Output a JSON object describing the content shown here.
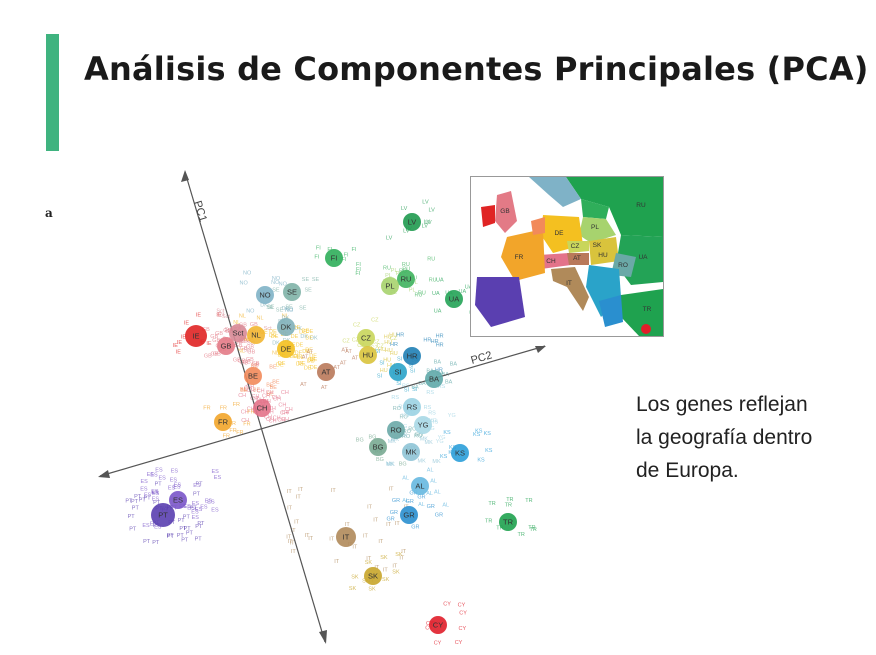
{
  "slide": {
    "title": "Análisis de Componentes Principales (PCA)",
    "accent_color": "#3fb37f",
    "panel_label": "a",
    "caption_lines": [
      "Los genes reflejan",
      "la geografía dentro",
      "de Europa."
    ]
  },
  "figure": {
    "axes": {
      "pc1_label": "PC1",
      "pc2_label": "PC2"
    },
    "nodes": [
      {
        "code": "LV",
        "color": "#1f9a4f"
      },
      {
        "code": "FI",
        "color": "#2fae5a"
      },
      {
        "code": "RU",
        "color": "#3fb35e"
      },
      {
        "code": "PL",
        "color": "#a7d36e"
      },
      {
        "code": "UA",
        "color": "#23a356"
      },
      {
        "code": "NO",
        "color": "#7fb2c7"
      },
      {
        "code": "SE",
        "color": "#7fb2a7"
      },
      {
        "code": "IE",
        "color": "#e02424"
      },
      {
        "code": "GB",
        "color": "#e37a86"
      },
      {
        "code": "Sct",
        "color": "#d88a96"
      },
      {
        "code": "NL",
        "color": "#f2b631"
      },
      {
        "code": "DK",
        "color": "#7fb0b9"
      },
      {
        "code": "DE",
        "color": "#f4c020"
      },
      {
        "code": "CZ",
        "color": "#c9d65b"
      },
      {
        "code": "HU",
        "color": "#d9c33c"
      },
      {
        "code": "HR",
        "color": "#1f7fb5"
      },
      {
        "code": "SI",
        "color": "#2aa3c9"
      },
      {
        "code": "BA",
        "color": "#5fa8a8"
      },
      {
        "code": "AT",
        "color": "#b9795a"
      },
      {
        "code": "BE",
        "color": "#f28a5a"
      },
      {
        "code": "CH",
        "color": "#e3738a"
      },
      {
        "code": "FR",
        "color": "#f2a52a"
      },
      {
        "code": "RS",
        "color": "#9bd3e3"
      },
      {
        "code": "RO",
        "color": "#6aa9a7"
      },
      {
        "code": "YG",
        "color": "#a9d8e6"
      },
      {
        "code": "BG",
        "color": "#79aa92"
      },
      {
        "code": "MK",
        "color": "#8fc4d6"
      },
      {
        "code": "KS",
        "color": "#2b9fd9"
      },
      {
        "code": "AL",
        "color": "#66b8e0"
      },
      {
        "code": "GR",
        "color": "#2a8fcf"
      },
      {
        "code": "TR",
        "color": "#1fa24f"
      },
      {
        "code": "PT",
        "color": "#5a3fb0"
      },
      {
        "code": "ES",
        "color": "#7a55c9"
      },
      {
        "code": "IT",
        "color": "#b08a5a"
      },
      {
        "code": "SK",
        "color": "#c8a52a"
      },
      {
        "code": "CY",
        "color": "#e01e2a"
      }
    ],
    "map_labels": [
      "GB",
      "DE",
      "PL",
      "CZ",
      "SK",
      "HU",
      "FR",
      "CH",
      "IT",
      "AT",
      "RO",
      "UA",
      "RU",
      "TR"
    ]
  }
}
